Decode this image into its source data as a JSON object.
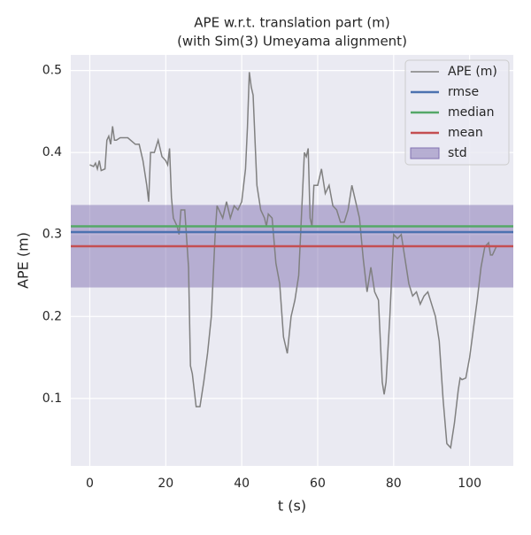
{
  "chart_data": {
    "type": "line",
    "title": "APE w.r.t. translation part (m)",
    "subtitle": "(with Sim(3) Umeyama alignment)",
    "x_label": "t (s)",
    "y_label": "APE (m)",
    "xlim": [
      -5,
      111.5
    ],
    "ylim": [
      0.0178,
      0.519
    ],
    "xticks": [
      0,
      20,
      40,
      60,
      80,
      100
    ],
    "yticks": [
      0.1,
      0.2,
      0.3,
      0.4,
      0.5
    ],
    "grid": true,
    "legend": "upper right",
    "x": [
      0,
      1,
      1.5,
      2,
      2.5,
      3,
      4,
      4.5,
      5,
      5.5,
      6,
      6.5,
      7,
      8,
      10,
      12,
      13,
      14,
      15,
      15.5,
      16,
      17,
      18,
      19,
      20,
      20.5,
      21,
      21.5,
      22,
      23,
      23.5,
      24,
      25,
      26,
      26.5,
      27,
      28,
      29,
      30,
      31,
      32,
      33,
      33.5,
      34,
      35,
      36,
      37,
      38,
      39,
      40,
      41,
      41.5,
      42,
      42.5,
      43,
      44,
      45,
      46,
      46.5,
      47,
      48,
      49,
      50,
      51,
      52,
      53,
      54,
      55,
      56,
      56.5,
      57,
      57.5,
      58,
      58.5,
      59,
      60,
      61,
      62,
      63,
      64,
      65,
      66,
      67,
      68,
      69,
      70,
      71,
      72,
      73,
      74,
      75,
      76,
      77,
      77.5,
      78,
      79,
      80,
      81,
      82,
      83,
      84,
      85,
      86,
      87,
      88,
      89,
      90,
      91,
      92,
      93,
      94,
      95,
      96,
      97,
      97.5,
      98,
      99,
      100,
      101,
      102,
      103,
      104,
      105,
      105.5,
      106,
      107
    ],
    "series": [
      {
        "name": "APE (m)",
        "color": "#808080",
        "values": [
          0.385,
          0.383,
          0.387,
          0.38,
          0.39,
          0.378,
          0.38,
          0.415,
          0.42,
          0.41,
          0.432,
          0.415,
          0.415,
          0.418,
          0.418,
          0.41,
          0.41,
          0.39,
          0.36,
          0.34,
          0.4,
          0.4,
          0.415,
          0.395,
          0.39,
          0.385,
          0.405,
          0.345,
          0.32,
          0.31,
          0.3,
          0.33,
          0.33,
          0.26,
          0.14,
          0.13,
          0.09,
          0.09,
          0.12,
          0.155,
          0.2,
          0.3,
          0.335,
          0.33,
          0.32,
          0.34,
          0.32,
          0.335,
          0.33,
          0.34,
          0.38,
          0.43,
          0.498,
          0.48,
          0.47,
          0.36,
          0.33,
          0.32,
          0.31,
          0.325,
          0.32,
          0.265,
          0.24,
          0.175,
          0.155,
          0.2,
          0.22,
          0.25,
          0.35,
          0.4,
          0.395,
          0.405,
          0.32,
          0.31,
          0.36,
          0.36,
          0.38,
          0.35,
          0.36,
          0.335,
          0.33,
          0.315,
          0.315,
          0.33,
          0.36,
          0.34,
          0.32,
          0.27,
          0.23,
          0.26,
          0.23,
          0.22,
          0.12,
          0.105,
          0.12,
          0.2,
          0.3,
          0.295,
          0.3,
          0.27,
          0.24,
          0.225,
          0.23,
          0.215,
          0.225,
          0.23,
          0.215,
          0.2,
          0.17,
          0.1,
          0.045,
          0.04,
          0.07,
          0.11,
          0.125,
          0.123,
          0.125,
          0.15,
          0.185,
          0.22,
          0.26,
          0.285,
          0.29,
          0.275,
          0.275,
          0.285
        ]
      }
    ],
    "hlines": [
      {
        "name": "rmse",
        "color": "#4c72b0",
        "value": 0.303
      },
      {
        "name": "median",
        "color": "#55a868",
        "value": 0.31
      },
      {
        "name": "mean",
        "color": "#c44e52",
        "value": 0.2857
      }
    ],
    "std": {
      "name": "std",
      "color": "#8172b2",
      "value": 0.0503
    }
  }
}
